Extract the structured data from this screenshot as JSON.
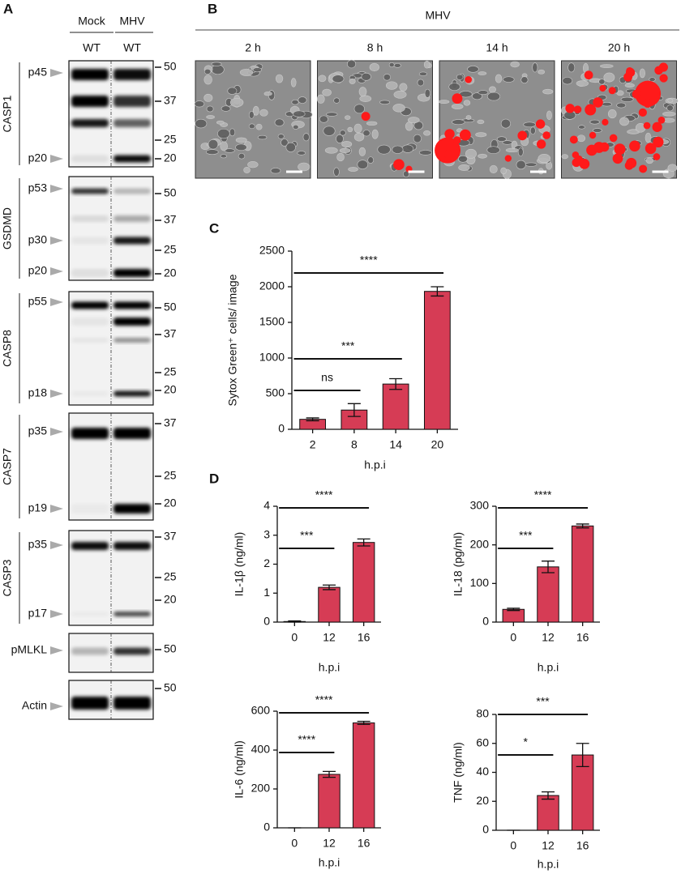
{
  "panel_a": {
    "label": "A",
    "conditions": [
      {
        "name": "Mock",
        "genotype": "WT"
      },
      {
        "name": "MHV",
        "genotype": "WT"
      }
    ],
    "blots": [
      {
        "protein": "CASP1",
        "bands": [
          "p45",
          "p20"
        ],
        "markers": [
          50,
          37,
          25,
          20
        ]
      },
      {
        "protein": "GSDMD",
        "bands": [
          "p53",
          "p30",
          "p20"
        ],
        "markers": [
          50,
          37,
          25,
          20
        ]
      },
      {
        "protein": "CASP8",
        "bands": [
          "p55",
          "p18"
        ],
        "markers": [
          50,
          37,
          25,
          20
        ]
      },
      {
        "protein": "CASP7",
        "bands": [
          "p35",
          "p19"
        ],
        "markers": [
          37,
          25,
          20
        ]
      },
      {
        "protein": "CASP3",
        "bands": [
          "p35",
          "p17"
        ],
        "markers": [
          37,
          25,
          20
        ]
      },
      {
        "protein": "pMLKL",
        "bands": [],
        "markers": [
          50
        ]
      },
      {
        "protein": "Actin",
        "bands": [],
        "markers": [
          50
        ]
      }
    ]
  },
  "panel_b": {
    "label": "B",
    "title": "MHV",
    "timepoints": [
      "2 h",
      "8 h",
      "14 h",
      "20 h"
    ]
  },
  "panel_labels": {
    "c": "C",
    "d": "D"
  },
  "chart_data": [
    {
      "type": "bar",
      "y_label": "Sytox Green⁺ cells/ image",
      "x_label": "h.p.i",
      "categories": [
        "2",
        "8",
        "14",
        "20"
      ],
      "values": [
        140,
        270,
        635,
        1935
      ],
      "errors": [
        20,
        90,
        75,
        65
      ],
      "color": "#d63c55",
      "ylim": [
        0,
        2500
      ],
      "yticks": [
        0,
        500,
        1000,
        1500,
        2000,
        2500
      ],
      "annotations": [
        "ns",
        "***",
        "****"
      ]
    },
    {
      "type": "bar",
      "y_label": "IL-1β (ng/ml)",
      "x_label": "h.p.i",
      "categories": [
        "0",
        "12",
        "16"
      ],
      "values": [
        0.02,
        1.2,
        2.75
      ],
      "errors": [
        0.02,
        0.08,
        0.12
      ],
      "color": "#d63c55",
      "ylim": [
        0,
        4
      ],
      "yticks": [
        0,
        1,
        2,
        3,
        4
      ],
      "annotations": [
        "***",
        "****"
      ]
    },
    {
      "type": "bar",
      "y_label": "IL-18 (pg/ml)",
      "x_label": "h.p.i",
      "categories": [
        "0",
        "12",
        "16"
      ],
      "values": [
        33,
        143,
        249
      ],
      "errors": [
        3,
        15,
        5
      ],
      "color": "#d63c55",
      "ylim": [
        0,
        300
      ],
      "yticks": [
        0,
        100,
        200,
        300
      ],
      "annotations": [
        "***",
        "****"
      ]
    },
    {
      "type": "bar",
      "y_label": "IL-6 (ng/ml)",
      "x_label": "h.p.i",
      "categories": [
        "0",
        "12",
        "16"
      ],
      "values": [
        0,
        275,
        540
      ],
      "errors": [
        0,
        15,
        8
      ],
      "color": "#d63c55",
      "ylim": [
        0,
        600
      ],
      "yticks": [
        0,
        200,
        400,
        600
      ],
      "annotations": [
        "****",
        "****"
      ]
    },
    {
      "type": "bar",
      "y_label": "TNF (ng/ml)",
      "x_label": "h.p.i",
      "categories": [
        "0",
        "12",
        "16"
      ],
      "values": [
        0,
        24,
        52
      ],
      "errors": [
        0,
        2.5,
        8
      ],
      "color": "#d63c55",
      "ylim": [
        0,
        80
      ],
      "yticks": [
        0,
        20,
        40,
        60,
        80
      ],
      "annotations": [
        "*",
        "***"
      ]
    }
  ]
}
